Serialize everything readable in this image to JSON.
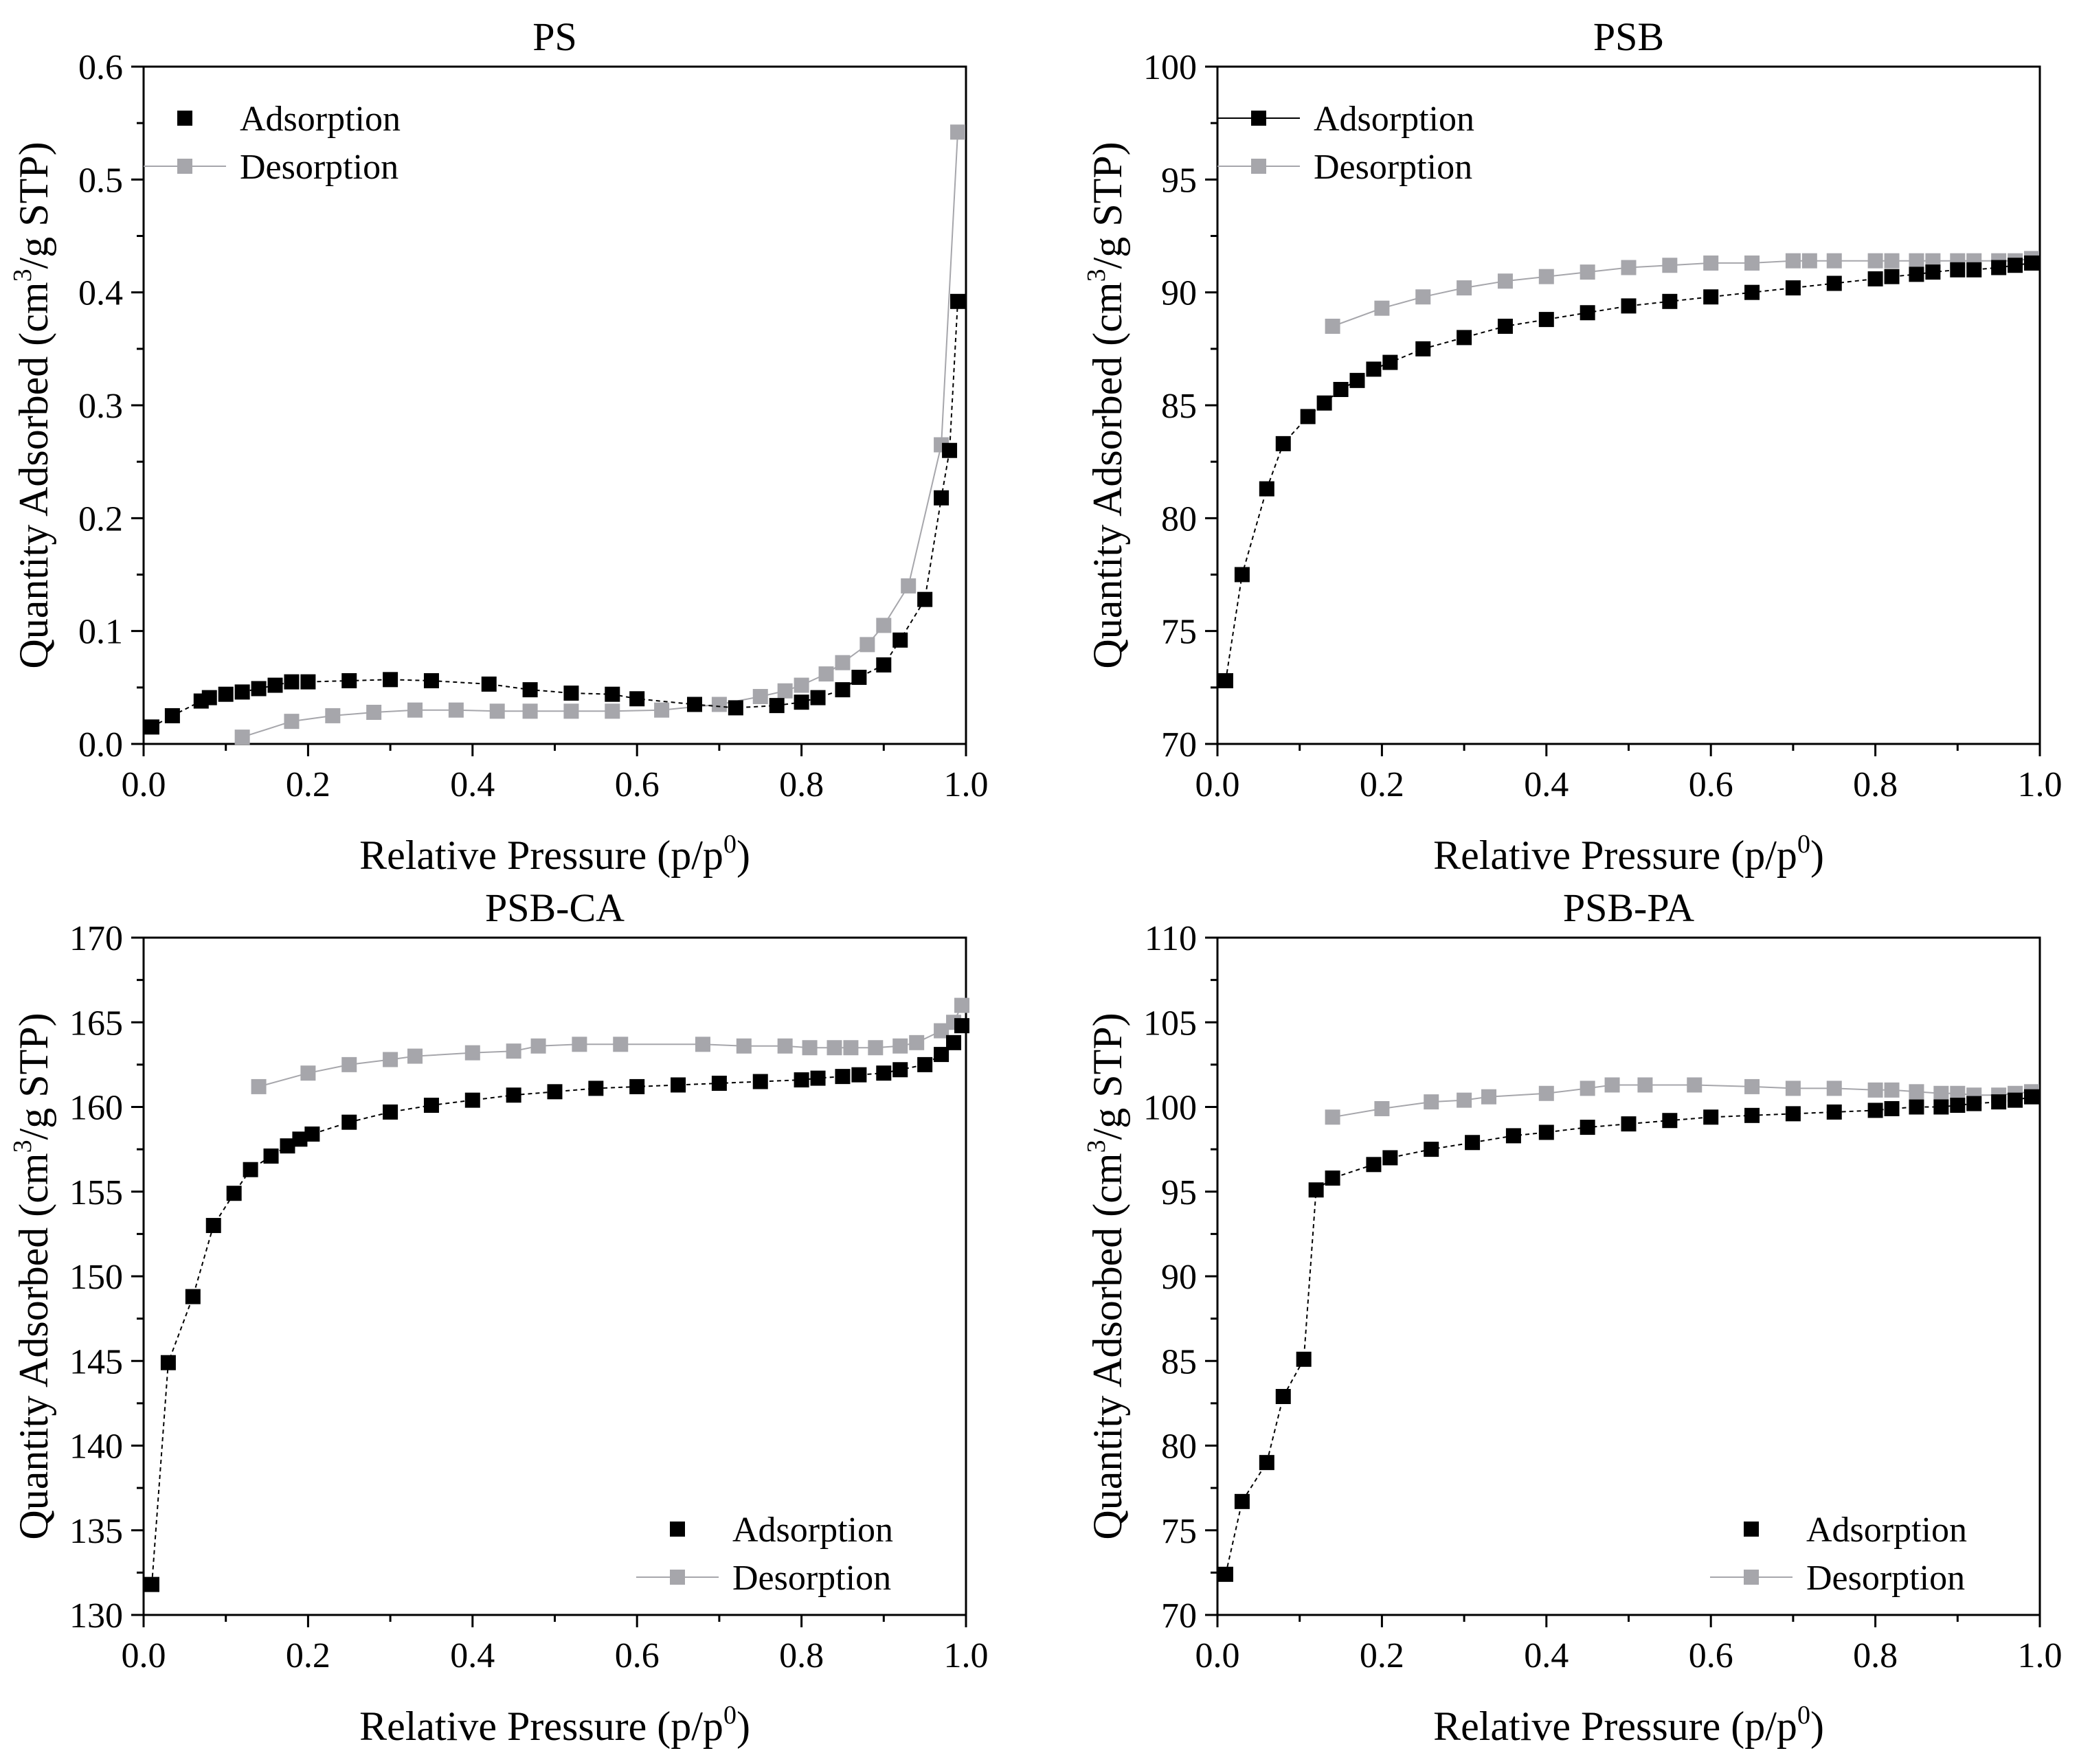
{
  "colors": {
    "adsorption": "#000000",
    "desorption": "#a6a6ab"
  },
  "chart_data": [
    {
      "id": "ps",
      "type": "scatter",
      "title": "PS",
      "xlabel_main": "Relative Pressure (p/p",
      "xlabel_sup": "0",
      "xlabel_end": ")",
      "ylabel_a": "Quantity Adsorbed (cm",
      "ylabel_sup": "3",
      "ylabel_b": "/g STP)",
      "xlim": [
        0,
        1
      ],
      "ylim": [
        0,
        0.6
      ],
      "xticks": [
        0,
        0.2,
        0.4,
        0.6,
        0.8,
        1.0
      ],
      "xtick_labels": [
        "0.0",
        "0.2",
        "0.4",
        "0.6",
        "0.8",
        "1.0"
      ],
      "yticks": [
        0,
        0.1,
        0.2,
        0.3,
        0.4,
        0.5,
        0.6
      ],
      "ytick_labels": [
        "0.0",
        "0.1",
        "0.2",
        "0.3",
        "0.4",
        "0.5",
        "0.6"
      ],
      "legend": {
        "position": "top-left",
        "adsorption_label": "Adsorption",
        "desorption_label": "Desorption",
        "adsorption_line": false,
        "desorption_line": true
      },
      "series": [
        {
          "name": "Adsorption",
          "x": [
            0.01,
            0.035,
            0.07,
            0.08,
            0.1,
            0.12,
            0.14,
            0.16,
            0.18,
            0.2,
            0.25,
            0.3,
            0.35,
            0.42,
            0.47,
            0.52,
            0.57,
            0.6,
            0.67,
            0.72,
            0.77,
            0.8,
            0.82,
            0.85,
            0.87,
            0.9,
            0.92,
            0.95,
            0.97,
            0.98,
            0.99
          ],
          "y": [
            0.015,
            0.025,
            0.038,
            0.041,
            0.044,
            0.046,
            0.049,
            0.052,
            0.055,
            0.055,
            0.056,
            0.057,
            0.056,
            0.053,
            0.048,
            0.045,
            0.044,
            0.04,
            0.035,
            0.032,
            0.034,
            0.037,
            0.041,
            0.048,
            0.059,
            0.07,
            0.092,
            0.128,
            0.218,
            0.26,
            0.392
          ]
        },
        {
          "name": "Desorption",
          "x": [
            0.99,
            0.97,
            0.93,
            0.9,
            0.88,
            0.85,
            0.83,
            0.8,
            0.78,
            0.75,
            0.7,
            0.63,
            0.57,
            0.52,
            0.47,
            0.43,
            0.38,
            0.33,
            0.28,
            0.23,
            0.18,
            0.12
          ],
          "y": [
            0.542,
            0.265,
            0.14,
            0.105,
            0.088,
            0.072,
            0.062,
            0.052,
            0.047,
            0.042,
            0.035,
            0.03,
            0.029,
            0.029,
            0.029,
            0.029,
            0.03,
            0.03,
            0.028,
            0.025,
            0.02,
            0.006
          ]
        }
      ]
    },
    {
      "id": "psb",
      "type": "scatter",
      "title": "PSB",
      "xlabel_main": "Relative Pressure (p/p",
      "xlabel_sup": "0",
      "xlabel_end": ")",
      "ylabel_a": "Quantity Adsorbed (cm",
      "ylabel_sup": "3",
      "ylabel_b": "/g STP)",
      "xlim": [
        0,
        1
      ],
      "ylim": [
        70,
        100
      ],
      "xticks": [
        0,
        0.2,
        0.4,
        0.6,
        0.8,
        1.0
      ],
      "xtick_labels": [
        "0.0",
        "0.2",
        "0.4",
        "0.6",
        "0.8",
        "1.0"
      ],
      "yticks": [
        70,
        75,
        80,
        85,
        90,
        95,
        100
      ],
      "ytick_labels": [
        "70",
        "75",
        "80",
        "85",
        "90",
        "95",
        "100"
      ],
      "legend": {
        "position": "top-left",
        "adsorption_label": "Adsorption",
        "desorption_label": "Desorption",
        "adsorption_line": true,
        "desorption_line": true
      },
      "series": [
        {
          "name": "Adsorption",
          "x": [
            0.01,
            0.03,
            0.06,
            0.08,
            0.11,
            0.13,
            0.15,
            0.17,
            0.19,
            0.21,
            0.25,
            0.3,
            0.35,
            0.4,
            0.45,
            0.5,
            0.55,
            0.6,
            0.65,
            0.7,
            0.75,
            0.8,
            0.82,
            0.85,
            0.87,
            0.9,
            0.92,
            0.95,
            0.97,
            0.99
          ],
          "y": [
            72.8,
            77.5,
            81.3,
            83.3,
            84.5,
            85.1,
            85.7,
            86.1,
            86.6,
            86.9,
            87.5,
            88.0,
            88.5,
            88.8,
            89.1,
            89.4,
            89.6,
            89.8,
            90.0,
            90.2,
            90.4,
            90.6,
            90.7,
            90.8,
            90.9,
            91.0,
            91.0,
            91.1,
            91.2,
            91.3
          ]
        },
        {
          "name": "Desorption",
          "x": [
            0.99,
            0.97,
            0.95,
            0.92,
            0.9,
            0.87,
            0.85,
            0.82,
            0.8,
            0.75,
            0.72,
            0.7,
            0.65,
            0.6,
            0.55,
            0.5,
            0.45,
            0.4,
            0.35,
            0.3,
            0.25,
            0.2,
            0.14
          ],
          "y": [
            91.5,
            91.4,
            91.4,
            91.4,
            91.4,
            91.4,
            91.4,
            91.4,
            91.4,
            91.4,
            91.4,
            91.4,
            91.3,
            91.3,
            91.2,
            91.1,
            90.9,
            90.7,
            90.5,
            90.2,
            89.8,
            89.3,
            88.5
          ]
        }
      ]
    },
    {
      "id": "psb-ca",
      "type": "scatter",
      "title": "PSB-CA",
      "xlabel_main": "Relative Pressure (p/p",
      "xlabel_sup": "0",
      "xlabel_end": ")",
      "ylabel_a": "Quantity Adsorbed (cm",
      "ylabel_sup": "3",
      "ylabel_b": "/g STP)",
      "xlim": [
        0,
        1
      ],
      "ylim": [
        130,
        170
      ],
      "xticks": [
        0,
        0.2,
        0.4,
        0.6,
        0.8,
        1.0
      ],
      "xtick_labels": [
        "0.0",
        "0.2",
        "0.4",
        "0.6",
        "0.8",
        "1.0"
      ],
      "yticks": [
        130,
        135,
        140,
        145,
        150,
        155,
        160,
        165,
        170
      ],
      "ytick_labels": [
        "130",
        "135",
        "140",
        "145",
        "150",
        "155",
        "160",
        "165",
        "170"
      ],
      "legend": {
        "position": "bottom-right",
        "adsorption_label": "Adsorption",
        "desorption_label": "Desorption",
        "adsorption_line": false,
        "desorption_line": true
      },
      "series": [
        {
          "name": "Adsorption",
          "x": [
            0.01,
            0.03,
            0.06,
            0.085,
            0.11,
            0.13,
            0.155,
            0.175,
            0.19,
            0.205,
            0.25,
            0.3,
            0.35,
            0.4,
            0.45,
            0.5,
            0.55,
            0.6,
            0.65,
            0.7,
            0.75,
            0.8,
            0.82,
            0.85,
            0.87,
            0.9,
            0.92,
            0.95,
            0.97,
            0.985,
            0.995
          ],
          "y": [
            131.8,
            144.9,
            148.8,
            153.0,
            154.9,
            156.3,
            157.1,
            157.7,
            158.1,
            158.4,
            159.1,
            159.7,
            160.1,
            160.4,
            160.7,
            160.9,
            161.1,
            161.2,
            161.3,
            161.4,
            161.5,
            161.6,
            161.7,
            161.8,
            161.9,
            162.0,
            162.2,
            162.5,
            163.1,
            163.8,
            164.8
          ]
        },
        {
          "name": "Desorption",
          "x": [
            0.995,
            0.985,
            0.97,
            0.94,
            0.92,
            0.89,
            0.86,
            0.84,
            0.81,
            0.78,
            0.73,
            0.68,
            0.58,
            0.53,
            0.48,
            0.45,
            0.4,
            0.33,
            0.3,
            0.25,
            0.2,
            0.14
          ],
          "y": [
            166.0,
            165.0,
            164.5,
            163.8,
            163.6,
            163.5,
            163.5,
            163.5,
            163.5,
            163.6,
            163.6,
            163.7,
            163.7,
            163.7,
            163.6,
            163.3,
            163.2,
            163.0,
            162.8,
            162.5,
            162.0,
            161.2
          ]
        }
      ]
    },
    {
      "id": "psb-pa",
      "type": "scatter",
      "title": "PSB-PA",
      "xlabel_main": "Relative Pressure (p/p",
      "xlabel_sup": "0",
      "xlabel_end": ")",
      "ylabel_a": "Quantity Adsorbed (cm",
      "ylabel_sup": "3",
      "ylabel_b": "/g STP)",
      "xlim": [
        0,
        1
      ],
      "ylim": [
        70,
        110
      ],
      "xticks": [
        0,
        0.2,
        0.4,
        0.6,
        0.8,
        1.0
      ],
      "xtick_labels": [
        "0.0",
        "0.2",
        "0.4",
        "0.6",
        "0.8",
        "1.0"
      ],
      "yticks": [
        70,
        75,
        80,
        85,
        90,
        95,
        100,
        105,
        110
      ],
      "ytick_labels": [
        "70",
        "75",
        "80",
        "85",
        "90",
        "95",
        "100",
        "105",
        "110"
      ],
      "legend": {
        "position": "bottom-right",
        "adsorption_label": "Adsorption",
        "desorption_label": "Desorption",
        "adsorption_line": false,
        "desorption_line": true
      },
      "series": [
        {
          "name": "Adsorption",
          "x": [
            0.01,
            0.03,
            0.06,
            0.08,
            0.105,
            0.12,
            0.14,
            0.19,
            0.21,
            0.26,
            0.31,
            0.36,
            0.4,
            0.45,
            0.5,
            0.55,
            0.6,
            0.65,
            0.7,
            0.75,
            0.8,
            0.82,
            0.85,
            0.88,
            0.9,
            0.92,
            0.95,
            0.97,
            0.99
          ],
          "y": [
            72.4,
            76.7,
            79.0,
            82.9,
            85.1,
            95.1,
            95.8,
            96.6,
            97.0,
            97.5,
            97.9,
            98.3,
            98.5,
            98.8,
            99.0,
            99.2,
            99.4,
            99.5,
            99.6,
            99.7,
            99.8,
            99.9,
            100.0,
            100.0,
            100.1,
            100.2,
            100.3,
            100.4,
            100.6
          ]
        },
        {
          "name": "Desorption",
          "x": [
            0.99,
            0.97,
            0.95,
            0.92,
            0.9,
            0.88,
            0.85,
            0.82,
            0.8,
            0.75,
            0.7,
            0.65,
            0.58,
            0.52,
            0.48,
            0.45,
            0.4,
            0.33,
            0.3,
            0.26,
            0.2,
            0.14
          ],
          "y": [
            100.9,
            100.8,
            100.7,
            100.7,
            100.8,
            100.8,
            100.9,
            101.0,
            101.0,
            101.1,
            101.1,
            101.2,
            101.3,
            101.3,
            101.3,
            101.1,
            100.8,
            100.6,
            100.4,
            100.3,
            99.9,
            99.4
          ]
        }
      ]
    }
  ]
}
